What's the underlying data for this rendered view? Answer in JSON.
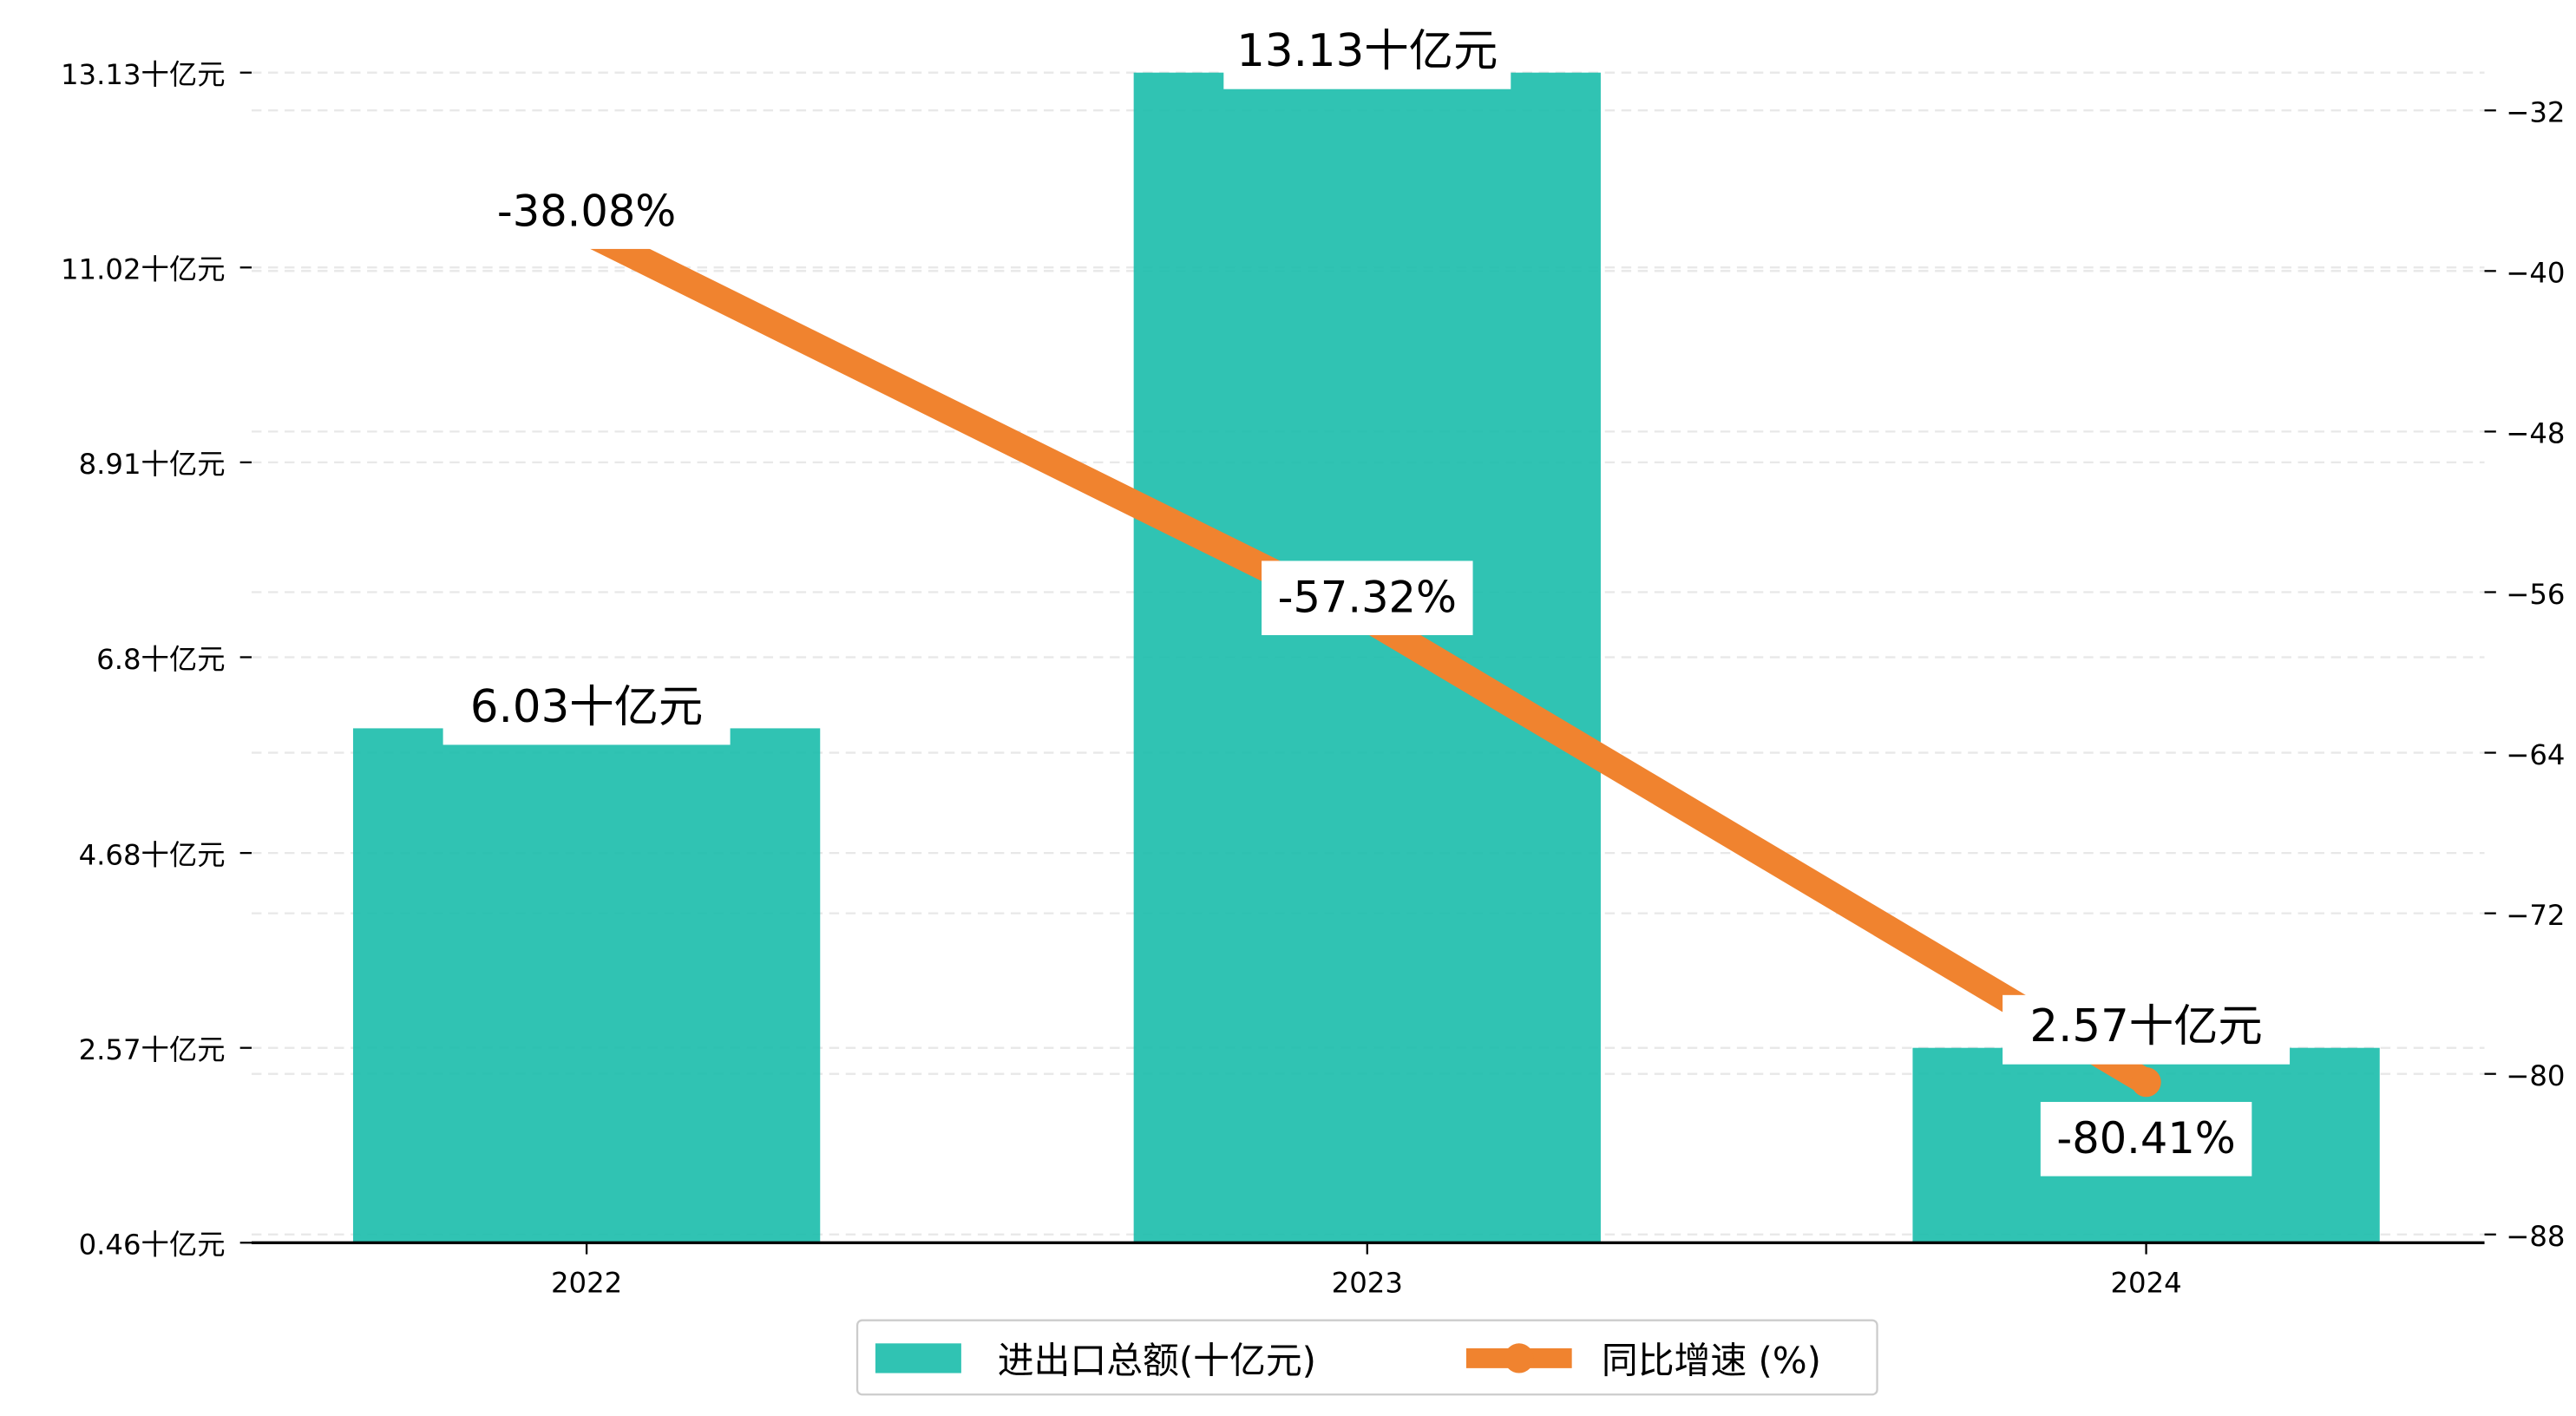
{
  "chart_data": {
    "type": "bar+line",
    "categories": [
      "2022",
      "2023",
      "2024"
    ],
    "series": [
      {
        "name": "进出口总额(十亿元)",
        "type": "bar",
        "axis": "left",
        "values": [
          6.03,
          13.13,
          2.57
        ],
        "labels": [
          "6.03十亿元",
          "13.13十亿元",
          "2.57十亿元"
        ],
        "color": "#1abcab"
      },
      {
        "name": "同比增速 (%)",
        "type": "line",
        "axis": "right",
        "values": [
          -38.08,
          -57.32,
          -80.41
        ],
        "labels": [
          "-38.08%",
          "-57.32%",
          "-80.41%"
        ],
        "color": "#f0832f"
      }
    ],
    "left_axis": {
      "ylim": [
        0.46,
        13.13
      ],
      "ticks": [
        0.46,
        2.57,
        4.68,
        6.8,
        8.91,
        11.02,
        13.13
      ],
      "tick_labels": [
        "0.46十亿元",
        "2.57十亿元",
        "4.68十亿元",
        "6.8十亿元",
        "8.91十亿元",
        "11.02十亿元",
        "13.13十亿元"
      ]
    },
    "right_axis": {
      "ylim": [
        -88.3,
        -28.3
      ],
      "ticks": [
        -88,
        -80,
        -72,
        -64,
        -56,
        -48,
        -40,
        -32
      ],
      "tick_labels": [
        "−88",
        "−80",
        "−72",
        "−64",
        "−56",
        "−48",
        "−40",
        "−32"
      ]
    },
    "grid": true,
    "legend": {
      "placement": "bottom-center",
      "entries": [
        "进出口总额(十亿元)",
        "同比增速 (%)"
      ]
    }
  }
}
